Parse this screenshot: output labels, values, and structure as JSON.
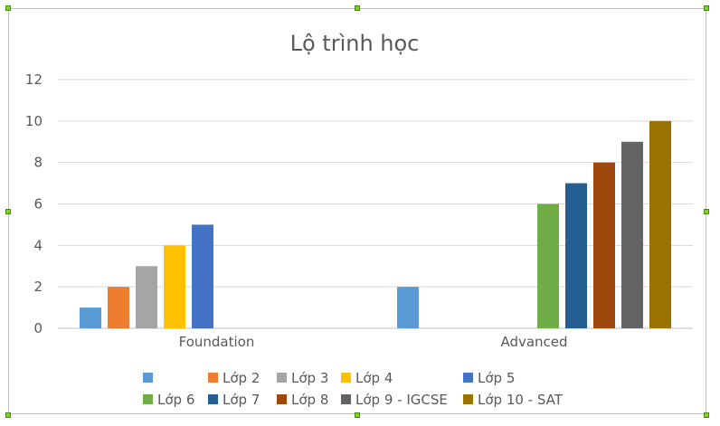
{
  "chart_data": {
    "type": "bar",
    "title": "Lộ trình học",
    "categories": [
      "Foundation",
      "Advanced"
    ],
    "ylim": [
      0,
      12
    ],
    "yticks": [
      0,
      2,
      4,
      6,
      8,
      10,
      12
    ],
    "grid": true,
    "legend_position": "bottom",
    "series": [
      {
        "name": "",
        "color": "#5b9bd5",
        "values": [
          1,
          2
        ]
      },
      {
        "name": "Lớp 2",
        "color": "#ed7d31",
        "values": [
          2,
          null
        ]
      },
      {
        "name": "Lớp 3",
        "color": "#a5a5a5",
        "values": [
          3,
          null
        ]
      },
      {
        "name": "Lớp 4",
        "color": "#ffc000",
        "values": [
          4,
          null
        ]
      },
      {
        "name": "Lớp 5",
        "color": "#4472c4",
        "values": [
          5,
          null
        ]
      },
      {
        "name": "Lớp 6",
        "color": "#70ad47",
        "values": [
          null,
          6
        ]
      },
      {
        "name": "Lớp 7",
        "color": "#255e91",
        "values": [
          null,
          7
        ]
      },
      {
        "name": "Lớp 8",
        "color": "#9e480e",
        "values": [
          null,
          8
        ]
      },
      {
        "name": "Lớp 9 - IGCSE",
        "color": "#636363",
        "values": [
          null,
          9
        ]
      },
      {
        "name": "Lớp 10 - SAT",
        "color": "#997300",
        "values": [
          null,
          10
        ]
      }
    ]
  }
}
